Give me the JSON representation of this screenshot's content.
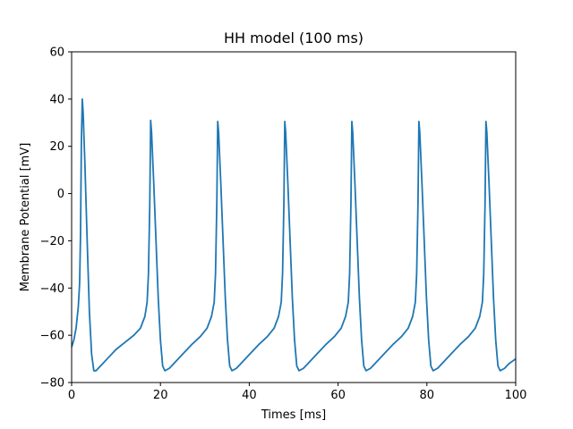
{
  "chart_data": {
    "type": "line",
    "title": "HH model (100 ms)",
    "xlabel": "Times [ms]",
    "ylabel": "Membrane Potential [mV]",
    "xlim": [
      0,
      100
    ],
    "ylim": [
      -80,
      60
    ],
    "xticks": [
      0,
      20,
      40,
      60,
      80,
      100
    ],
    "yticks": [
      -80,
      -60,
      -40,
      -20,
      0,
      20,
      40,
      60
    ],
    "xtick_labels": [
      "0",
      "20",
      "40",
      "60",
      "80",
      "100"
    ],
    "ytick_labels": [
      "−80",
      "−60",
      "−40",
      "−20",
      "0",
      "20",
      "40",
      "60"
    ],
    "grid": false,
    "series": [
      {
        "color": "#1f77b4",
        "x": [
          0,
          0.5,
          1.0,
          1.5,
          1.8,
          2.0,
          2.2,
          2.4,
          2.6,
          3.0,
          3.5,
          4.0,
          4.5,
          5.0,
          5.5,
          6.0,
          7.0,
          8.0,
          10.0,
          12.0,
          14.0,
          15.5,
          16.5,
          17.0,
          17.3,
          17.6,
          17.8,
          18.0,
          18.5,
          19.0,
          19.5,
          20.0,
          20.5,
          21.0,
          22.0,
          23.0,
          25.0,
          27.0,
          29.0,
          30.5,
          31.5,
          32.1,
          32.4,
          32.7,
          32.9,
          33.1,
          33.6,
          34.1,
          34.6,
          35.1,
          35.6,
          36.1,
          37.1,
          38.1,
          40.1,
          42.1,
          44.1,
          45.6,
          46.6,
          47.2,
          47.5,
          47.8,
          48.0,
          48.2,
          48.7,
          49.2,
          49.7,
          50.2,
          50.7,
          51.2,
          52.2,
          53.2,
          55.2,
          57.2,
          59.2,
          60.7,
          61.7,
          62.3,
          62.6,
          62.9,
          63.1,
          63.3,
          63.8,
          64.3,
          64.8,
          65.3,
          65.8,
          66.3,
          67.3,
          68.3,
          70.3,
          72.3,
          74.3,
          75.8,
          76.8,
          77.4,
          77.7,
          78.0,
          78.2,
          78.4,
          78.9,
          79.4,
          79.9,
          80.4,
          80.9,
          81.4,
          82.4,
          83.4,
          85.4,
          87.4,
          89.4,
          90.9,
          91.9,
          92.5,
          92.8,
          93.1,
          93.3,
          93.5,
          94.0,
          94.5,
          95.0,
          95.5,
          96.0,
          96.5,
          97.5,
          98.5,
          100.0
        ],
        "y": [
          -65,
          -62,
          -57,
          -48,
          -38,
          -18,
          22,
          40,
          34,
          12,
          -20,
          -50,
          -68,
          -75,
          -75,
          -74,
          -72,
          -70,
          -66,
          -63,
          -60,
          -57,
          -52,
          -46,
          -34,
          -4,
          31,
          26,
          4,
          -20,
          -44,
          -62,
          -73,
          -75,
          -74,
          -72,
          -68,
          -64,
          -60.5,
          -57,
          -52,
          -46,
          -34,
          -4,
          30.5,
          26,
          4,
          -20,
          -44,
          -62,
          -73,
          -75,
          -74,
          -72,
          -68,
          -64,
          -60.5,
          -57,
          -52,
          -46,
          -34,
          -4,
          30.5,
          26,
          4,
          -20,
          -44,
          -62,
          -73,
          -75,
          -74,
          -72,
          -68,
          -64,
          -60.5,
          -57,
          -52,
          -46,
          -34,
          -4,
          30.5,
          26,
          4,
          -20,
          -44,
          -62,
          -73,
          -75,
          -74,
          -72,
          -68,
          -64,
          -60.5,
          -57,
          -52,
          -46,
          -34,
          -4,
          30.5,
          26,
          4,
          -20,
          -44,
          -62,
          -73,
          -75,
          -74,
          -72,
          -68,
          -64,
          -60.5,
          -57,
          -52,
          -46,
          -34,
          -4,
          30.5,
          26,
          4,
          -20,
          -44,
          -62,
          -73,
          -75,
          -74,
          -72,
          -70
        ]
      }
    ]
  }
}
